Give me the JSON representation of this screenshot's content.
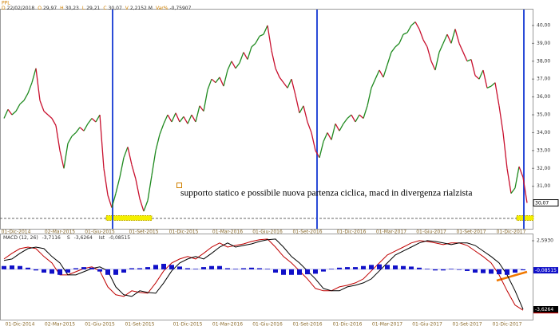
{
  "chart_data": [
    {
      "type": "line",
      "title": "PPL",
      "info": [
        {
          "key": "D",
          "value": "22/02/2018"
        },
        {
          "key": "O",
          "value": "29,97"
        },
        {
          "key": "H",
          "value": "30,23"
        },
        {
          "key": "L",
          "value": "29,21"
        },
        {
          "key": "C",
          "value": "30,07"
        },
        {
          "key": "V",
          "value": "2,2152 M"
        },
        {
          "key": "Var%",
          "value": "-0,75907"
        }
      ],
      "annotation": "supporto statico e possibile nuova partenza ciclica, macd in divergenza rialzista",
      "up_color": "#1f8a1f",
      "down_color": "#c8102e",
      "categories": [
        null,
        null,
        null,
        "01-Dic-2014",
        null,
        null,
        null,
        null,
        null,
        null,
        null,
        null,
        null,
        null,
        "02-Mar-2015",
        null,
        null,
        null,
        null,
        null,
        null,
        null,
        null,
        null,
        "01-Giu-2015",
        null,
        null,
        null,
        null,
        null,
        null,
        null,
        null,
        null,
        null,
        "01-Set-2015",
        null,
        null,
        null,
        null,
        null,
        null,
        null,
        null,
        null,
        "01-Dic-2015",
        null,
        null,
        null,
        null,
        null,
        null,
        null,
        null,
        null,
        null,
        "01-Mar-2016",
        null,
        null,
        null,
        null,
        null,
        null,
        null,
        null,
        null,
        "01-Giu-2016",
        null,
        null,
        null,
        null,
        null,
        null,
        null,
        null,
        null,
        "01-Set-2016",
        null,
        null,
        null,
        null,
        null,
        null,
        null,
        null,
        null,
        null,
        "01-Dic-2016",
        null,
        null,
        null,
        null,
        null,
        null,
        null,
        null,
        null,
        "01-Mar-2017",
        null,
        null,
        null,
        null,
        null,
        null,
        null,
        null,
        null,
        "01-Giu-2017",
        null,
        null,
        null,
        null,
        null,
        null,
        null,
        null,
        null,
        "01-Set-2017",
        null,
        null,
        null,
        null,
        null,
        null,
        null,
        null,
        null,
        "01-Dic-2017",
        null,
        null,
        null,
        null
      ],
      "values": [
        34.8,
        35.3,
        35.0,
        35.2,
        35.6,
        35.8,
        36.2,
        36.8,
        37.6,
        35.8,
        35.2,
        35.0,
        34.8,
        34.4,
        33.0,
        32.0,
        33.4,
        33.8,
        34.0,
        34.3,
        34.1,
        34.5,
        34.8,
        34.6,
        35.0,
        32.0,
        30.5,
        29.8,
        30.6,
        31.5,
        32.6,
        33.2,
        32.2,
        31.4,
        30.3,
        29.6,
        30.2,
        31.6,
        33.0,
        33.9,
        34.5,
        35.0,
        34.6,
        35.1,
        34.6,
        34.9,
        34.5,
        35.0,
        34.6,
        35.5,
        35.2,
        36.4,
        37.0,
        36.8,
        37.1,
        36.6,
        37.5,
        38.0,
        37.6,
        37.9,
        38.5,
        38.1,
        38.8,
        39.0,
        39.4,
        39.5,
        40.0,
        38.6,
        37.6,
        37.1,
        36.8,
        36.5,
        37.0,
        36.1,
        35.1,
        35.5,
        34.6,
        34.0,
        33.0,
        32.6,
        33.5,
        34.0,
        33.6,
        34.5,
        34.1,
        34.5,
        34.8,
        35.0,
        34.6,
        35.0,
        34.8,
        35.5,
        36.5,
        37.0,
        37.5,
        37.1,
        37.8,
        38.5,
        38.8,
        39.0,
        39.5,
        39.6,
        40.0,
        40.2,
        39.8,
        39.2,
        38.8,
        38.0,
        37.5,
        38.5,
        39.0,
        39.5,
        39.0,
        39.8,
        39.0,
        38.5,
        38.0,
        38.1,
        37.2,
        37.0,
        37.5,
        36.5,
        36.6,
        36.8,
        35.5,
        34.0,
        32.0,
        30.6,
        30.9,
        32.1,
        31.5,
        30.07
      ],
      "value_labels": [
        null,
        null,
        null,
        null,
        null,
        null,
        null,
        null,
        null,
        null,
        null,
        null,
        null,
        null,
        null,
        null,
        null,
        null,
        null,
        null,
        null,
        null,
        null,
        null,
        null,
        null,
        null,
        null,
        null,
        null,
        null,
        null,
        null,
        null,
        null,
        null,
        null,
        null,
        null,
        null,
        null,
        null,
        null,
        null,
        null,
        null,
        null,
        null,
        null,
        null,
        null,
        null,
        null,
        null,
        null,
        null,
        null,
        null,
        null,
        null,
        null,
        null,
        null,
        null,
        null,
        null,
        null,
        null,
        null,
        null,
        null,
        null,
        null,
        null,
        null,
        null,
        null,
        null,
        null,
        null,
        null,
        null,
        null,
        null,
        null,
        null,
        null,
        null,
        null,
        null,
        null,
        null,
        null,
        null,
        null,
        null,
        null,
        null,
        null,
        null,
        null,
        null,
        null,
        null,
        null,
        null,
        null,
        null,
        null,
        null,
        null,
        null,
        null,
        null,
        null,
        null,
        null,
        null,
        null,
        null,
        null,
        null,
        null,
        null,
        null,
        null,
        null,
        null,
        null,
        null,
        null,
        "30,07"
      ],
      "ylim": [
        28.71,
        40.89
      ],
      "yticks": [
        {
          "value": 31,
          "label": "31,00"
        },
        {
          "value": 32,
          "label": "32,00"
        },
        {
          "value": 33,
          "label": "33,00"
        },
        {
          "value": 34,
          "label": "34,00"
        },
        {
          "value": 35,
          "label": "35,00"
        },
        {
          "value": 36,
          "label": "36,00"
        },
        {
          "value": 37,
          "label": "37,00"
        },
        {
          "value": 38,
          "label": "38,00"
        },
        {
          "value": 39,
          "label": "39,00"
        },
        {
          "value": 40,
          "label": "40,00"
        }
      ]
    },
    {
      "type": "line",
      "categories": [
        null,
        null,
        "01-Dic-2014",
        null,
        null,
        null,
        null,
        "02-Mar-2015",
        null,
        null,
        null,
        null,
        "01-Giu-2015",
        null,
        null,
        null,
        null,
        "01-Set-2015",
        null,
        null,
        null,
        null,
        null,
        "01-Dic-2015",
        null,
        null,
        null,
        null,
        "01-Mar-2016",
        null,
        null,
        null,
        null,
        "01-Giu-2016",
        null,
        null,
        null,
        null,
        "01-Set-2016",
        null,
        null,
        null,
        null,
        "01-Dic-2016",
        null,
        null,
        null,
        null,
        "01-Mar-2017",
        null,
        null,
        null,
        null,
        "01-Giu-2017",
        null,
        null,
        null,
        null,
        "01-Set-2017",
        null,
        null,
        null,
        null,
        "01-Dic-2017",
        null,
        null
      ],
      "series": [
        {
          "name": "MACD (12, 26)",
          "color": "#c00000",
          "values": [
            0.94,
            1.45,
            1.88,
            2.02,
            1.88,
            1.16,
            0.58,
            -0.51,
            -0.51,
            -0.22,
            0.07,
            0.22,
            -0.14,
            -1.59,
            -2.31,
            -2.46,
            -1.95,
            -2.1,
            -2.17,
            -1.23,
            -0.14,
            0.58,
            0.94,
            1.16,
            0.94,
            1.45,
            2.02,
            2.39,
            2.02,
            2.17,
            2.31,
            2.53,
            2.68,
            2.75,
            2.02,
            1.16,
            0.58,
            -0.14,
            -0.87,
            -1.74,
            -1.95,
            -1.95,
            -1.59,
            -1.45,
            -1.23,
            -0.87,
            -0.14,
            0.58,
            1.3,
            1.66,
            2.02,
            2.39,
            2.6,
            2.53,
            2.39,
            2.24,
            2.39,
            2.39,
            2.17,
            1.66,
            1.16,
            0.58,
            -0.51,
            -1.95,
            -3.25,
            -3.7116
          ],
          "value_labels": [
            null,
            null,
            null,
            null,
            null,
            null,
            null,
            null,
            null,
            null,
            null,
            null,
            null,
            null,
            null,
            null,
            null,
            null,
            null,
            null,
            null,
            null,
            null,
            null,
            null,
            null,
            null,
            null,
            null,
            null,
            null,
            null,
            null,
            null,
            null,
            null,
            null,
            null,
            null,
            null,
            null,
            null,
            null,
            null,
            null,
            null,
            null,
            null,
            null,
            null,
            null,
            null,
            null,
            null,
            null,
            null,
            null,
            null,
            null,
            null,
            null,
            null,
            null,
            null,
            null,
            "-3,7116"
          ]
        },
        {
          "name": "S",
          "color": "#000000",
          "values": [
            0.8,
            0.94,
            1.45,
            1.88,
            2.02,
            1.88,
            1.16,
            0.58,
            -0.51,
            -0.51,
            -0.22,
            0.07,
            0.22,
            -0.14,
            -1.59,
            -2.31,
            -2.46,
            -1.95,
            -2.1,
            -2.17,
            -1.23,
            -0.14,
            0.58,
            0.94,
            1.16,
            0.94,
            1.45,
            2.02,
            2.39,
            2.02,
            2.17,
            2.31,
            2.53,
            2.68,
            2.75,
            2.02,
            1.16,
            0.58,
            -0.14,
            -0.87,
            -1.74,
            -1.95,
            -1.95,
            -1.59,
            -1.45,
            -1.23,
            -0.87,
            -0.14,
            0.58,
            1.3,
            1.66,
            2.02,
            2.39,
            2.6,
            2.53,
            2.39,
            2.24,
            2.39,
            2.39,
            2.17,
            1.66,
            1.16,
            0.58,
            -0.51,
            -1.95,
            -3.6264
          ],
          "value_labels": [
            null,
            null,
            null,
            null,
            null,
            null,
            null,
            null,
            null,
            null,
            null,
            null,
            null,
            null,
            null,
            null,
            null,
            null,
            null,
            null,
            null,
            null,
            null,
            null,
            null,
            null,
            null,
            null,
            null,
            null,
            null,
            null,
            null,
            null,
            null,
            null,
            null,
            null,
            null,
            null,
            null,
            null,
            null,
            null,
            null,
            null,
            null,
            null,
            null,
            null,
            null,
            null,
            null,
            null,
            null,
            null,
            null,
            null,
            null,
            null,
            null,
            null,
            null,
            null,
            null,
            "-3,6264"
          ]
        },
        {
          "name": "Ist",
          "color": "#1010c8",
          "type": "bar",
          "values": [
            0.3,
            0.35,
            0.3,
            0.15,
            -0.1,
            -0.3,
            -0.4,
            -0.5,
            -0.3,
            0.1,
            0.2,
            0.15,
            -0.2,
            -0.5,
            -0.5,
            -0.3,
            0.1,
            0.1,
            0.2,
            0.4,
            0.5,
            0.4,
            0.25,
            0.1,
            0.05,
            0.2,
            0.3,
            0.3,
            0.1,
            0.05,
            0.1,
            0.15,
            0.1,
            0.05,
            -0.3,
            -0.5,
            -0.5,
            -0.5,
            -0.45,
            -0.4,
            -0.2,
            0.05,
            0.15,
            0.2,
            0.2,
            0.3,
            0.4,
            0.45,
            0.4,
            0.35,
            0.3,
            0.25,
            0.15,
            0.05,
            -0.1,
            -0.1,
            0.05,
            -0.05,
            -0.15,
            -0.3,
            -0.35,
            -0.4,
            -0.45,
            -0.5,
            -0.3,
            -0.08515
          ],
          "value_labels": [
            null,
            null,
            null,
            null,
            null,
            null,
            null,
            null,
            null,
            null,
            null,
            null,
            null,
            null,
            null,
            null,
            null,
            null,
            null,
            null,
            null,
            null,
            null,
            null,
            null,
            null,
            null,
            null,
            null,
            null,
            null,
            null,
            null,
            null,
            null,
            null,
            null,
            null,
            null,
            null,
            null,
            null,
            null,
            null,
            null,
            null,
            null,
            null,
            null,
            null,
            null,
            null,
            null,
            null,
            null,
            null,
            null,
            null,
            null,
            null,
            null,
            null,
            null,
            null,
            null,
            "-0,08515"
          ]
        }
      ],
      "ylim": [
        -4.35,
        3.03
      ],
      "yticks": [
        {
          "value": 2.593,
          "label": "2,5930"
        }
      ]
    }
  ]
}
